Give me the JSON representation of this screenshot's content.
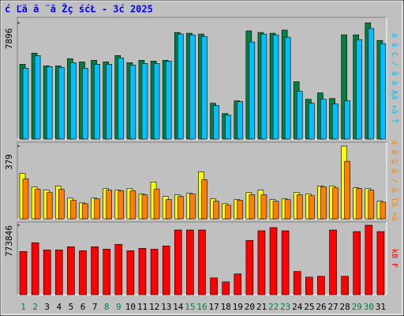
{
  "chart_data": [
    {
      "type": "bar",
      "title": "ć Ľă ă ¨ă Žç śćŁ - 3ć 2025",
      "side_label": "ă ă Ľ / ă ă Ąă ¤ă Ť",
      "categories": [
        "1",
        "2",
        "3",
        "4",
        "5",
        "6",
        "7",
        "8",
        "9",
        "10",
        "11",
        "12",
        "13",
        "14",
        "15",
        "16",
        "17",
        "18",
        "19",
        "20",
        "21",
        "22",
        "23",
        "24",
        "25",
        "26",
        "27",
        "28",
        "29",
        "30",
        "31"
      ],
      "label_colors": [
        "#008040",
        "#008040",
        "#000000",
        "#000000",
        "#000000",
        "#000000",
        "#000000",
        "#008040",
        "#008040",
        "#000000",
        "#000000",
        "#000000",
        "#000000",
        "#000000",
        "#008040",
        "#008040",
        "#000000",
        "#000000",
        "#000000",
        "#000000",
        "#000000",
        "#008040",
        "#008040",
        "#000000",
        "#000000",
        "#000000",
        "#000000",
        "#000000",
        "#008040",
        "#008040",
        "#000000"
      ],
      "ylim": [
        0,
        7896
      ],
      "yticks": [
        7896
      ],
      "series": [
        {
          "color": "#008040",
          "values": [
            5084,
            5841,
            4975,
            4975,
            5462,
            5246,
            5354,
            5246,
            5678,
            5192,
            5354,
            5300,
            5354,
            7247,
            7193,
            7139,
            2434,
            1731,
            2596,
            7355,
            7247,
            7193,
            7409,
            3894,
            2704,
            3137,
            2758,
            7085,
            7085,
            7896,
            6706
          ]
        },
        {
          "color": "#00c0ff",
          "values": [
            4813,
            5678,
            4921,
            4867,
            5192,
            4813,
            5084,
            5084,
            5516,
            5029,
            5138,
            5138,
            5300,
            7139,
            7084,
            6976,
            2271,
            1622,
            2542,
            6598,
            7139,
            7084,
            6922,
            3245,
            2434,
            2704,
            2380,
            2596,
            6760,
            7517,
            6490
          ]
        }
      ]
    },
    {
      "type": "bar",
      "side_label": "ă ă Ş ă / ă ľă ¤ă",
      "categories": [
        "1",
        "2",
        "3",
        "4",
        "5",
        "6",
        "7",
        "8",
        "9",
        "10",
        "11",
        "12",
        "13",
        "14",
        "15",
        "16",
        "17",
        "18",
        "19",
        "20",
        "21",
        "22",
        "23",
        "24",
        "25",
        "26",
        "27",
        "28",
        "29",
        "30",
        "31"
      ],
      "ylim": [
        0,
        379
      ],
      "yticks": [
        379
      ],
      "series": [
        {
          "color": "#ffff00",
          "values": [
            237,
            167,
            150,
            171,
            108,
            83,
            108,
            158,
            150,
            158,
            129,
            192,
            117,
            125,
            133,
            246,
            104,
            79,
            100,
            137,
            150,
            100,
            104,
            137,
            129,
            171,
            171,
            379,
            162,
            158,
            92
          ]
        },
        {
          "color": "#ff8000",
          "values": [
            208,
            154,
            137,
            154,
            96,
            79,
            104,
            150,
            146,
            146,
            125,
            154,
            100,
            117,
            129,
            204,
            92,
            71,
            96,
            125,
            125,
            92,
            100,
            125,
            121,
            167,
            162,
            300,
            158,
            150,
            87
          ]
        }
      ]
    },
    {
      "type": "bar",
      "side_label": "kB F",
      "categories": [
        "1",
        "2",
        "3",
        "4",
        "5",
        "6",
        "7",
        "8",
        "9",
        "10",
        "11",
        "12",
        "13",
        "14",
        "15",
        "16",
        "17",
        "18",
        "19",
        "20",
        "21",
        "22",
        "23",
        "24",
        "25",
        "26",
        "27",
        "28",
        "29",
        "30",
        "31"
      ],
      "ylim": [
        0,
        773846
      ],
      "yticks": [
        773846
      ],
      "series": [
        {
          "color": "#ff0000",
          "values": [
            480330,
            578175,
            498120,
            498120,
            533700,
            489225,
            533700,
            507015,
            560385,
            489225,
            515910,
            507015,
            542595,
            720495,
            720495,
            720495,
            186795,
            142320,
            231270,
            604860,
            711600,
            747180,
            711600,
            257955,
            195690,
            204585,
            720495,
            204585,
            702705,
            773846,
            702705
          ]
        }
      ]
    }
  ]
}
